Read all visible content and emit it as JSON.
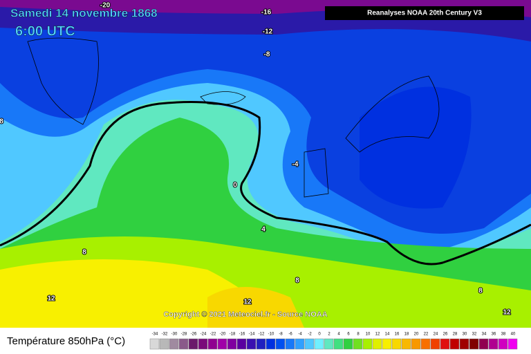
{
  "header": {
    "date": "Samedi 14 novembre 1868",
    "time": "6:00 UTC",
    "source": "Reanalyses NOAA 20th Century V3"
  },
  "copyright": "Copyright © 2021 Meteociel.fr - Source NOAA",
  "contour_labels": [
    -20,
    -16,
    -12,
    -8,
    8,
    -4,
    0,
    4,
    8,
    8,
    12,
    12,
    8,
    12
  ],
  "legend": {
    "title": "Température 850hPa (°C)",
    "ticks": [
      -34,
      -32,
      -30,
      -28,
      -26,
      -24,
      -22,
      -20,
      -18,
      -16,
      -14,
      -12,
      -10,
      -8,
      -6,
      -4,
      -2,
      0,
      2,
      4,
      6,
      8,
      10,
      12,
      14,
      16,
      18,
      20,
      22,
      24,
      26,
      28,
      30,
      32,
      34,
      36,
      38,
      40
    ],
    "colors": [
      "#d8d8d8",
      "#b8b8b8",
      "#a08aa0",
      "#8a5a8a",
      "#6a1a6a",
      "#7a0a7a",
      "#900090",
      "#a000a8",
      "#8000a0",
      "#5a00a0",
      "#3a10b0",
      "#2020c0",
      "#0030e0",
      "#0050f0",
      "#1878f8",
      "#30a0ff",
      "#50c8ff",
      "#70f0ff",
      "#60e8c0",
      "#40e080",
      "#30d040",
      "#70e020",
      "#a8f000",
      "#e0f000",
      "#f8f000",
      "#f8d800",
      "#f8b800",
      "#f89800",
      "#f87000",
      "#f04000",
      "#e01010",
      "#c00000",
      "#a00000",
      "#800000",
      "#900050",
      "#b00090",
      "#d000c0",
      "#f000f0"
    ]
  }
}
